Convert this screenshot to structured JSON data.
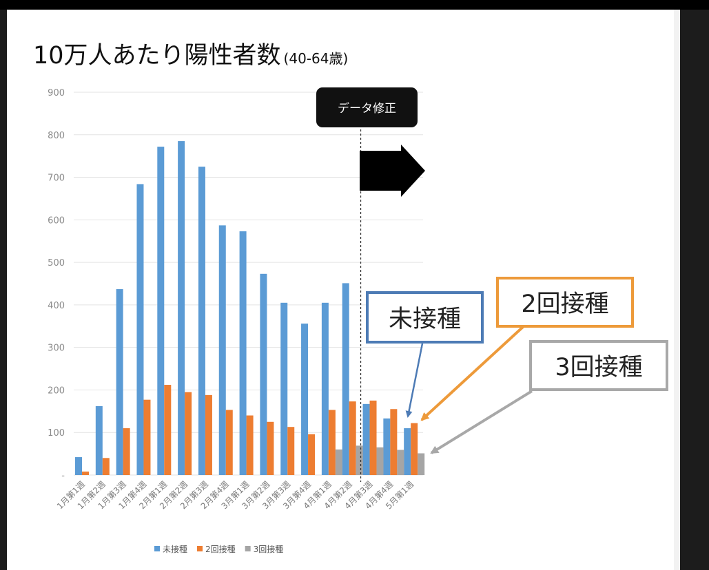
{
  "colors": {
    "unvaccinated": "#5b9bd5",
    "dose2": "#ed7d31",
    "dose3": "#a5a5a5",
    "callout_unvaccinated": "#4d7bb5",
    "callout_dose2": "#ed9a3a",
    "callout_dose3": "#a8a8a8"
  },
  "chart_data": {
    "type": "bar",
    "title": "10万人あたり陽性者数",
    "subtitle": "(40-64歳)",
    "categories": [
      "1月第1週",
      "1月第2週",
      "1月第3週",
      "1月第4週",
      "2月第1週",
      "2月第2週",
      "2月第3週",
      "2月第4週",
      "3月第1週",
      "3月第2週",
      "3月第3週",
      "3月第4週",
      "4月第1週",
      "4月第2週",
      "4月第3週",
      "4月第4週",
      "5月第1週"
    ],
    "series": [
      {
        "name": "未接種",
        "values": [
          42,
          162,
          437,
          684,
          772,
          785,
          725,
          587,
          573,
          473,
          405,
          356,
          405,
          451,
          167,
          133,
          110
        ]
      },
      {
        "name": "2回接種",
        "values": [
          8,
          40,
          110,
          177,
          212,
          195,
          188,
          153,
          140,
          125,
          113,
          96,
          153,
          173,
          175,
          155,
          122
        ]
      },
      {
        "name": "3回接種",
        "values": [
          null,
          null,
          null,
          null,
          null,
          null,
          null,
          null,
          null,
          null,
          null,
          null,
          60,
          69,
          65,
          59,
          51
        ]
      }
    ],
    "y_ticks": [
      "-",
      "100",
      "200",
      "300",
      "400",
      "500",
      "600",
      "700",
      "800",
      "900"
    ],
    "ylim": [
      0,
      900
    ],
    "grid": true,
    "legend": "bottom",
    "annotations": {
      "data_fix_label": "データ修正",
      "data_fix_after": "4月第2週"
    }
  },
  "callouts": {
    "unvaccinated": "未接種",
    "dose2": "2回接種",
    "dose3": "3回接種"
  }
}
